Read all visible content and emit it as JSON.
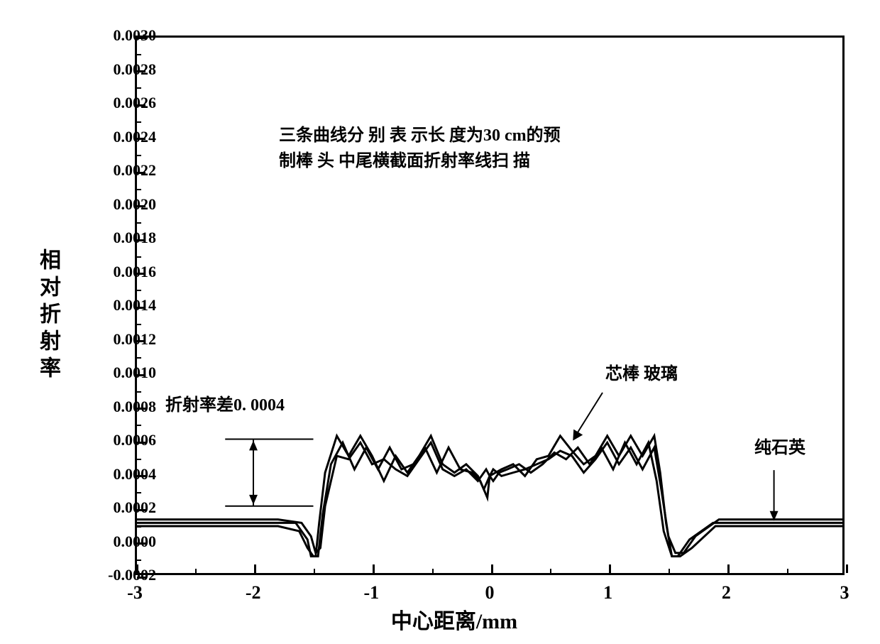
{
  "chart": {
    "type": "line",
    "title": "",
    "xlabel": "中心距离/mm",
    "ylabel": "相对折射率",
    "xlim": [
      -3,
      3
    ],
    "ylim": [
      -0.0002,
      0.003
    ],
    "x_ticks": [
      -3,
      -2,
      -1,
      0,
      1,
      2,
      3
    ],
    "y_ticks": [
      -0.0002,
      0.0,
      0.0002,
      0.0004,
      0.0006,
      0.0008,
      0.001,
      0.0012,
      0.0014,
      0.0016,
      0.0018,
      0.002,
      0.0022,
      0.0024,
      0.0026,
      0.0028,
      0.003
    ],
    "x_minor_ticks": [
      -2.5,
      -1.5,
      -0.5,
      0.5,
      1.5,
      2.5
    ],
    "y_minor_ticks": [
      -0.0001,
      0.0001,
      0.0003,
      0.0005,
      0.0007,
      0.0009,
      0.0011,
      0.0013,
      0.0015,
      0.0017,
      0.0019,
      0.0021,
      0.0023,
      0.0025,
      0.0027,
      0.0029
    ],
    "background_color": "#ffffff",
    "border_color": "#000000",
    "line_color": "#000000",
    "line_width": 3,
    "label_fontsize": 30,
    "tick_fontsize": 24,
    "annotation_fontsize": 24,
    "annotations": {
      "description_line1": "三条曲线分 别 表 示长 度为30 cm的预",
      "description_line2": "制棒 头 中尾横截面折射率线扫 描",
      "refractive_index_diff": "折射率差0. 0004",
      "core_glass": "芯棒 玻璃",
      "pure_silica": "纯石英"
    },
    "series": [
      {
        "name": "head",
        "x": [
          -3,
          -2.5,
          -2,
          -1.8,
          -1.65,
          -1.55,
          -1.52,
          -1.48,
          -1.45,
          -1.4,
          -1.3,
          -1.2,
          -1.1,
          -1.0,
          -0.9,
          -0.8,
          -0.7,
          -0.6,
          -0.5,
          -0.4,
          -0.3,
          -0.2,
          -0.1,
          -0.05,
          0,
          0.05,
          0.1,
          0.2,
          0.3,
          0.4,
          0.5,
          0.6,
          0.7,
          0.8,
          0.9,
          1.0,
          1.1,
          1.2,
          1.3,
          1.4,
          1.45,
          1.5,
          1.55,
          1.6,
          1.7,
          1.9,
          2.2,
          2.6,
          3
        ],
        "y": [
          0.0001,
          0.0001,
          0.0001,
          0.0001,
          0.0001,
          0.0,
          -0.0001,
          -0.0001,
          0.0001,
          0.0004,
          0.00062,
          0.0005,
          0.00062,
          0.0005,
          0.00035,
          0.0005,
          0.0004,
          0.0005,
          0.00062,
          0.00045,
          0.0004,
          0.00045,
          0.00038,
          0.0003,
          0.00038,
          0.0004,
          0.00042,
          0.00045,
          0.00038,
          0.00048,
          0.0005,
          0.00062,
          0.00053,
          0.00045,
          0.0005,
          0.00062,
          0.0005,
          0.00062,
          0.0005,
          0.00062,
          0.0004,
          0.0001,
          -0.0001,
          -0.0001,
          0.0,
          0.0001,
          0.0001,
          0.0001,
          0.0001
        ]
      },
      {
        "name": "middle",
        "x": [
          -3,
          -2.5,
          -2,
          -1.8,
          -1.62,
          -1.55,
          -1.5,
          -1.46,
          -1.42,
          -1.35,
          -1.25,
          -1.15,
          -1.05,
          -0.95,
          -0.85,
          -0.75,
          -0.65,
          -0.55,
          -0.45,
          -0.35,
          -0.25,
          -0.15,
          -0.08,
          -0.02,
          0,
          0.03,
          0.08,
          0.15,
          0.25,
          0.35,
          0.45,
          0.55,
          0.65,
          0.75,
          0.85,
          0.95,
          1.05,
          1.15,
          1.25,
          1.35,
          1.42,
          1.48,
          1.55,
          1.62,
          1.72,
          1.92,
          2.2,
          2.6,
          3
        ],
        "y": [
          8e-05,
          8e-05,
          8e-05,
          8e-05,
          5e-05,
          -5e-05,
          -0.0001,
          -0.0001,
          0.00015,
          0.00045,
          0.00058,
          0.00042,
          0.00055,
          0.00042,
          0.00055,
          0.00042,
          0.00045,
          0.00055,
          0.0004,
          0.00055,
          0.00042,
          0.0004,
          0.00035,
          0.00025,
          0.00038,
          0.00035,
          0.0004,
          0.00042,
          0.00045,
          0.0004,
          0.00045,
          0.00052,
          0.00048,
          0.00055,
          0.00045,
          0.00055,
          0.00042,
          0.00058,
          0.00045,
          0.00058,
          0.00035,
          5e-05,
          -0.0001,
          -0.0001,
          -5e-05,
          8e-05,
          8e-05,
          8e-05,
          8e-05
        ]
      },
      {
        "name": "tail",
        "x": [
          -3,
          -2.5,
          -2,
          -1.8,
          -1.6,
          -1.52,
          -1.48,
          -1.44,
          -1.4,
          -1.3,
          -1.2,
          -1.1,
          -1.0,
          -0.9,
          -0.8,
          -0.7,
          -0.6,
          -0.5,
          -0.4,
          -0.3,
          -0.2,
          -0.1,
          -0.03,
          0,
          0.03,
          0.1,
          0.2,
          0.3,
          0.4,
          0.5,
          0.6,
          0.7,
          0.8,
          0.9,
          1.0,
          1.1,
          1.2,
          1.3,
          1.4,
          1.46,
          1.52,
          1.58,
          1.65,
          1.75,
          1.95,
          2.2,
          2.6,
          3
        ],
        "y": [
          0.00012,
          0.00012,
          0.00012,
          0.00012,
          0.0001,
          2e-05,
          -8e-05,
          -5e-05,
          0.0002,
          0.0005,
          0.00048,
          0.00058,
          0.00045,
          0.00048,
          0.00042,
          0.00038,
          0.00048,
          0.00058,
          0.00042,
          0.00038,
          0.00042,
          0.00035,
          0.00042,
          0.00038,
          0.00042,
          0.00038,
          0.0004,
          0.00042,
          0.00045,
          0.00048,
          0.00053,
          0.0005,
          0.0004,
          0.00048,
          0.00058,
          0.00045,
          0.00055,
          0.00042,
          0.00055,
          0.0003,
          2e-05,
          -8e-05,
          -8e-05,
          2e-05,
          0.00012,
          0.00012,
          0.00012,
          0.00012
        ]
      }
    ]
  }
}
